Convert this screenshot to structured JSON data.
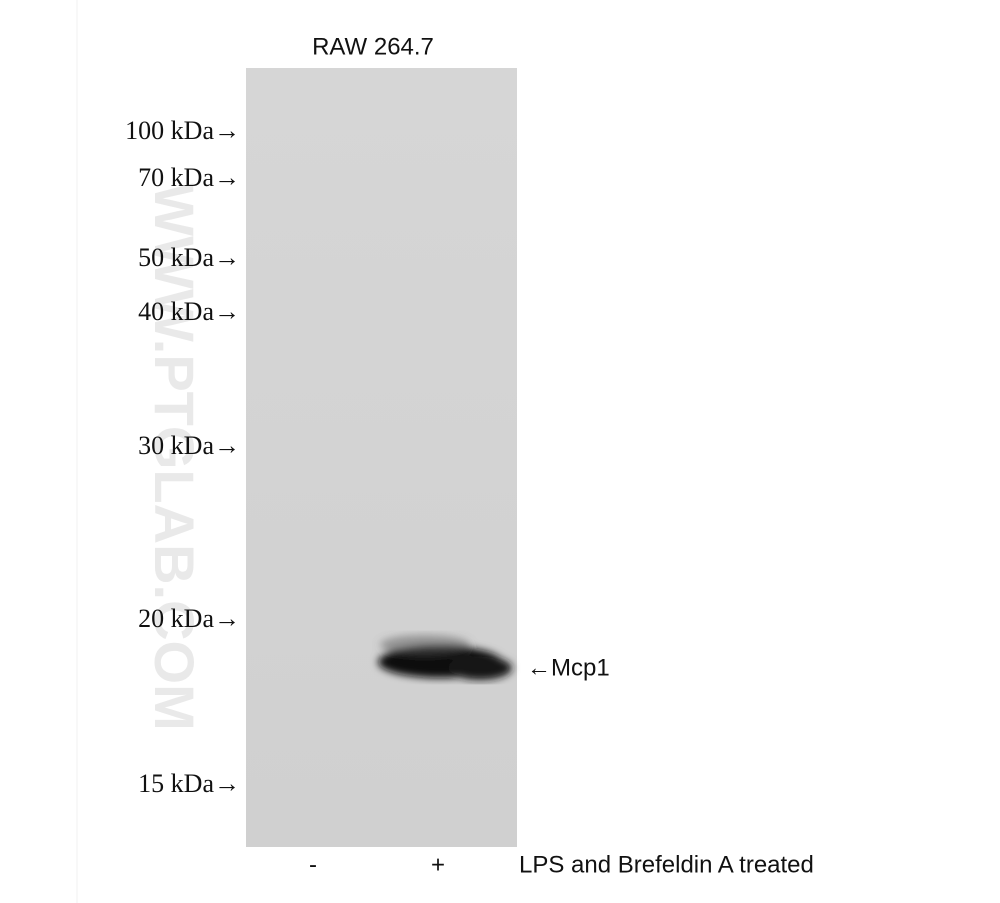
{
  "header": {
    "title": "RAW 264.7"
  },
  "markers": [
    "100 kDa→",
    "70 kDa→",
    "50 kDa→",
    "40 kDa→",
    "30 kDa→",
    "20 kDa→",
    "15 kDa→"
  ],
  "lanes": [
    "-",
    "+"
  ],
  "treatment": "LPS and Brefeldin A treated",
  "band_label": "←Mcp1",
  "watermark": "WWW.PTGLAB.COM"
}
